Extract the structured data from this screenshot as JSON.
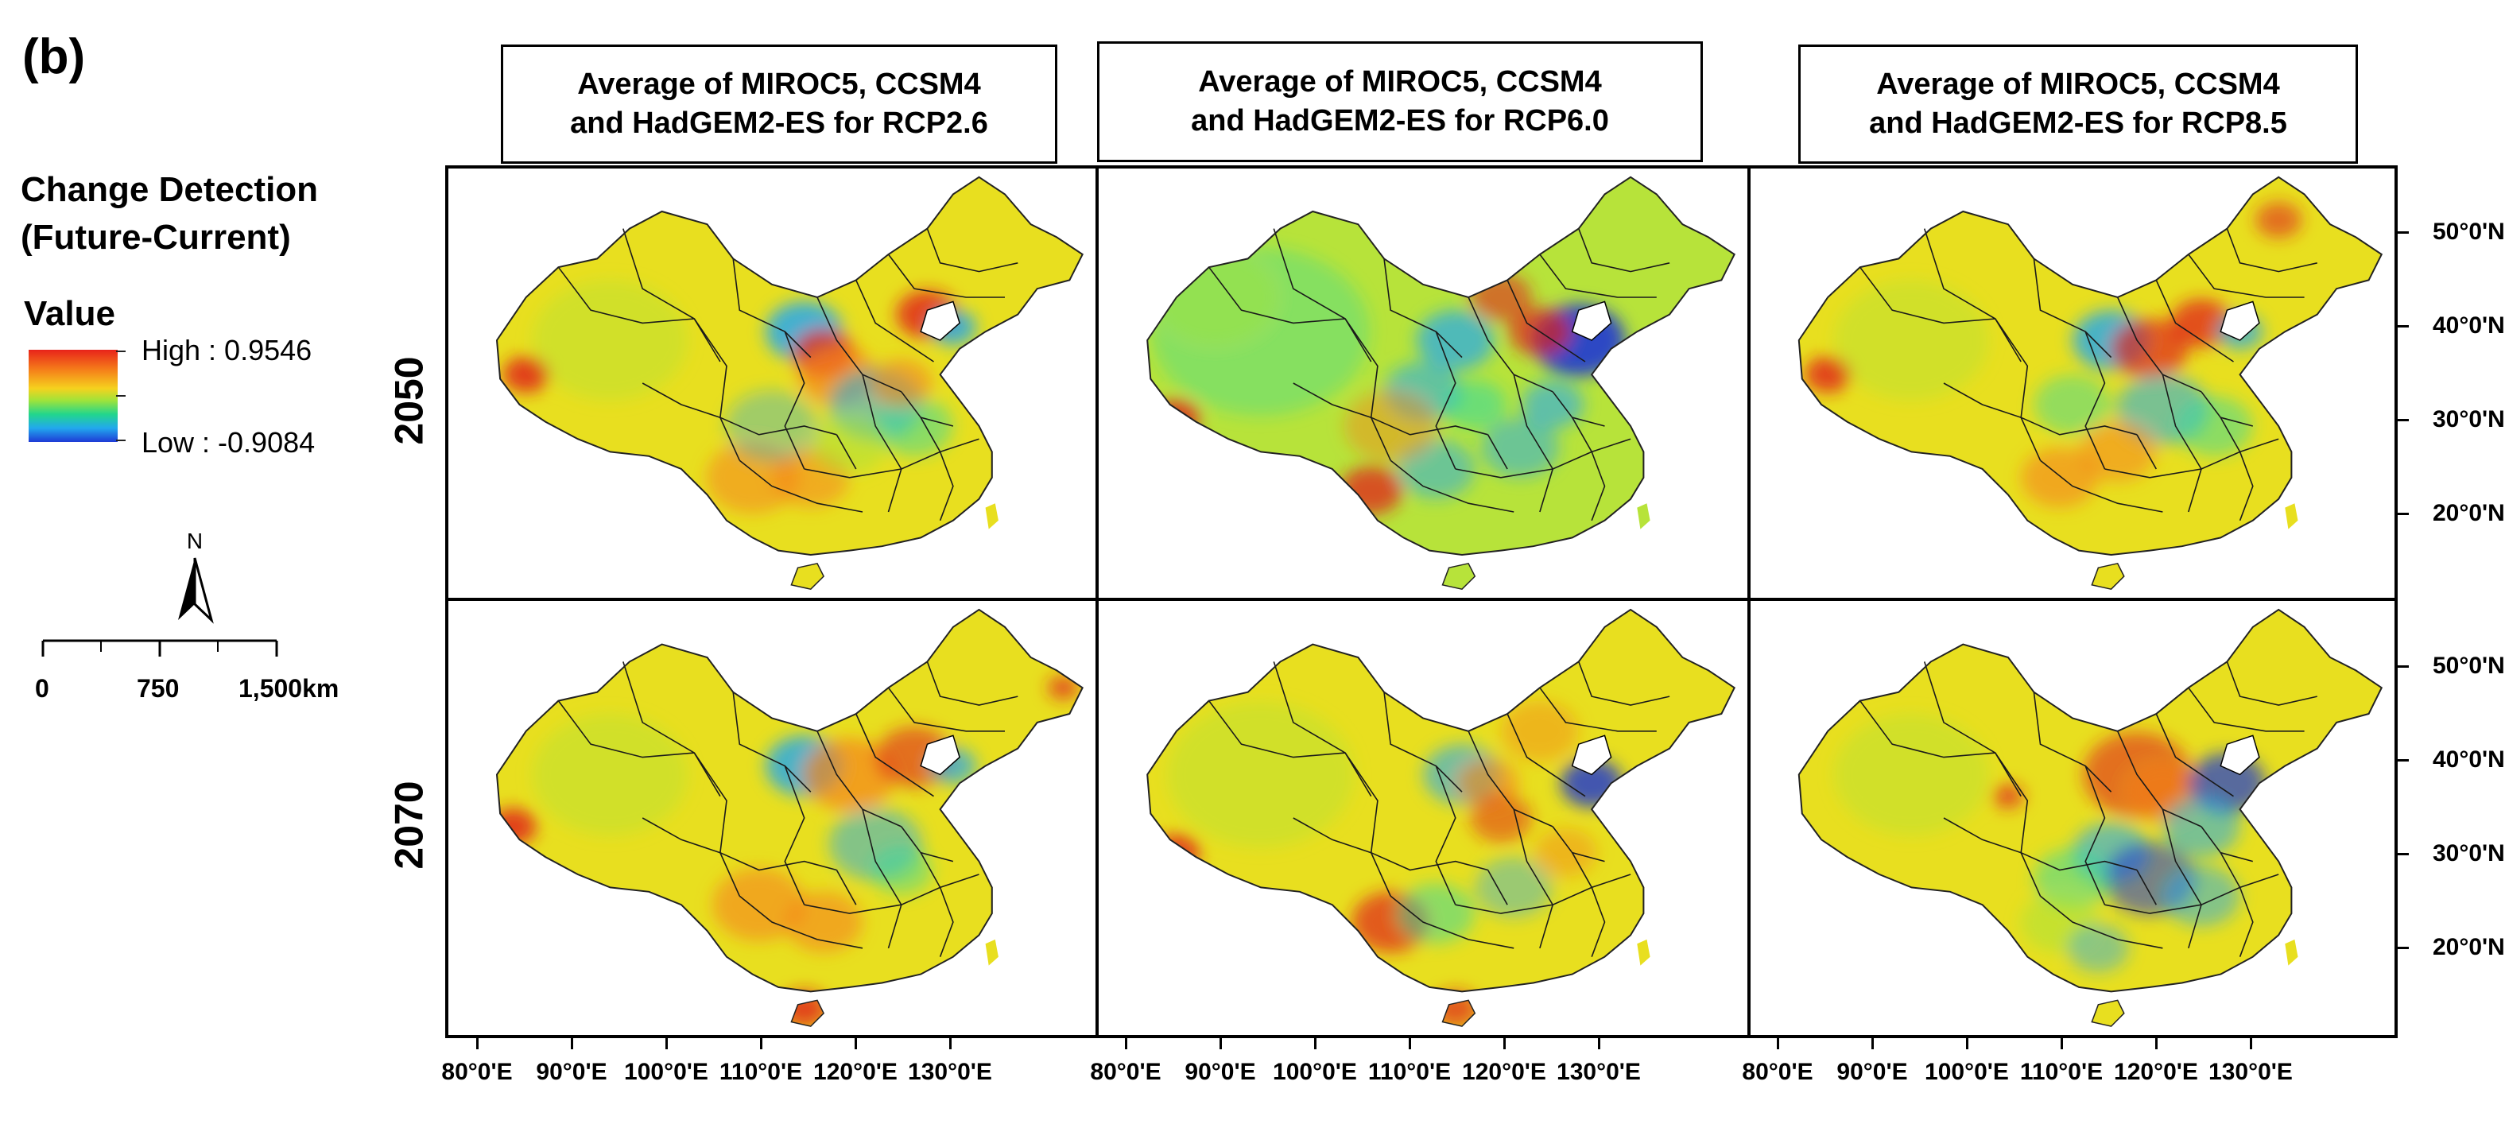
{
  "figure": {
    "panel_label": "(b)"
  },
  "legend": {
    "title_line1": "Change Detection",
    "title_line2": "(Future-Current)",
    "value_heading": "Value",
    "high_label": "High : 0.9546",
    "low_label": "Low : -0.9084",
    "colors": [
      "#e8231a",
      "#f5801a",
      "#f5d21e",
      "#9fe33a",
      "#22d68c",
      "#22a8ee",
      "#1e3ad6"
    ]
  },
  "north_arrow": {
    "letter": "N"
  },
  "scale_bar": {
    "labels": [
      "0",
      "750",
      "1,500km"
    ]
  },
  "columns": [
    {
      "line1": "Average of MIROC5, CCSM4",
      "line2": "and HadGEM2-ES for RCP2.6",
      "scenario": "RCP2.6"
    },
    {
      "line1": "Average of MIROC5, CCSM4",
      "line2": "and HadGEM2-ES for RCP6.0",
      "scenario": "RCP6.0"
    },
    {
      "line1": "Average of MIROC5, CCSM4",
      "line2": "and HadGEM2-ES for RCP8.5",
      "scenario": "RCP8.5"
    }
  ],
  "rows": [
    {
      "label": "2050"
    },
    {
      "label": "2070"
    }
  ],
  "axes": {
    "longitude_labels": [
      "80°0'E",
      "90°0'E",
      "100°0'E",
      "110°0'E",
      "120°0'E",
      "130°0'E"
    ],
    "latitude_labels": [
      "50°0'N",
      "40°0'N",
      "30°0'N",
      "20°0'N"
    ]
  }
}
